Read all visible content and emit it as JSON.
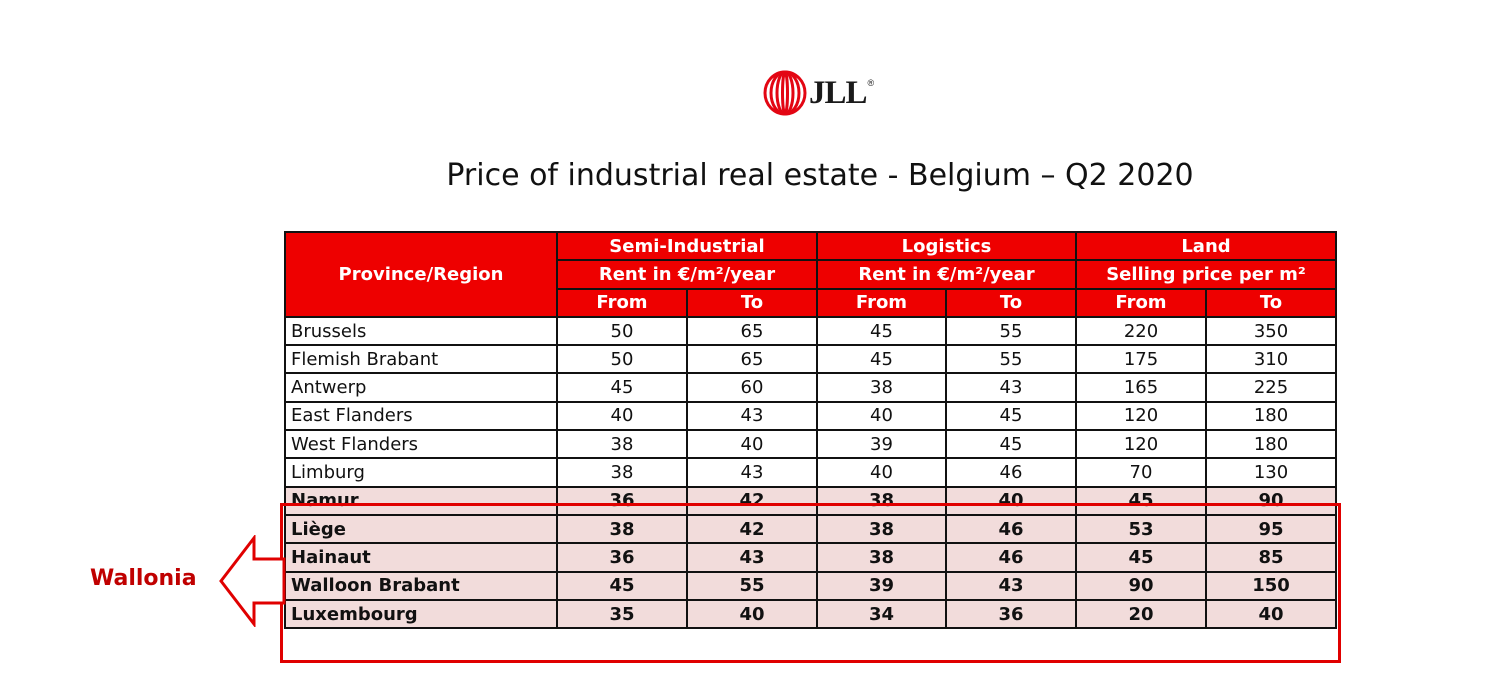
{
  "logo": {
    "text": "JLL",
    "reg": "®",
    "brand_color": "#e30613"
  },
  "title": "Price of industrial real estate - Belgium –  Q2 2020",
  "table": {
    "region_header": "Province/Region",
    "groups": [
      {
        "name": "Semi-Industrial",
        "unit": "Rent in €/m²/year"
      },
      {
        "name": "Logistics",
        "unit": "Rent in €/m²/year"
      },
      {
        "name": "Land",
        "unit": "Selling price per m²"
      }
    ],
    "sub_headers": [
      "From",
      "To",
      "From",
      "To",
      "From",
      "To"
    ],
    "rows": [
      {
        "name": "Brussels",
        "values": [
          "50",
          "65",
          "45",
          "55",
          "220",
          "350"
        ],
        "wallonia": false
      },
      {
        "name": "Flemish Brabant",
        "values": [
          "50",
          "65",
          "45",
          "55",
          "175",
          "310"
        ],
        "wallonia": false
      },
      {
        "name": "Antwerp",
        "values": [
          "45",
          "60",
          "38",
          "43",
          "165",
          "225"
        ],
        "wallonia": false
      },
      {
        "name": "East Flanders",
        "values": [
          "40",
          "43",
          "40",
          "45",
          "120",
          "180"
        ],
        "wallonia": false
      },
      {
        "name": "West Flanders",
        "values": [
          "38",
          "40",
          "39",
          "45",
          "120",
          "180"
        ],
        "wallonia": false
      },
      {
        "name": "Limburg",
        "values": [
          "38",
          "43",
          "40",
          "46",
          "70",
          "130"
        ],
        "wallonia": false
      },
      {
        "name": "Namur",
        "values": [
          "36",
          "42",
          "38",
          "40",
          "45",
          "90"
        ],
        "wallonia": true
      },
      {
        "name": "Liège",
        "values": [
          "38",
          "42",
          "38",
          "46",
          "53",
          "95"
        ],
        "wallonia": true
      },
      {
        "name": "Hainaut",
        "values": [
          "36",
          "43",
          "38",
          "46",
          "45",
          "85"
        ],
        "wallonia": true
      },
      {
        "name": "Walloon Brabant",
        "values": [
          "45",
          "55",
          "39",
          "43",
          "90",
          "150"
        ],
        "wallonia": true
      },
      {
        "name": "Luxembourg",
        "values": [
          "35",
          "40",
          "34",
          "36",
          "20",
          "40"
        ],
        "wallonia": true
      }
    ]
  },
  "annotation": {
    "label": "Wallonia",
    "color": "#c00000",
    "highlight_fill": "#f2dcdb"
  },
  "colors": {
    "header_red": "#ee0000",
    "border": "#111111"
  }
}
